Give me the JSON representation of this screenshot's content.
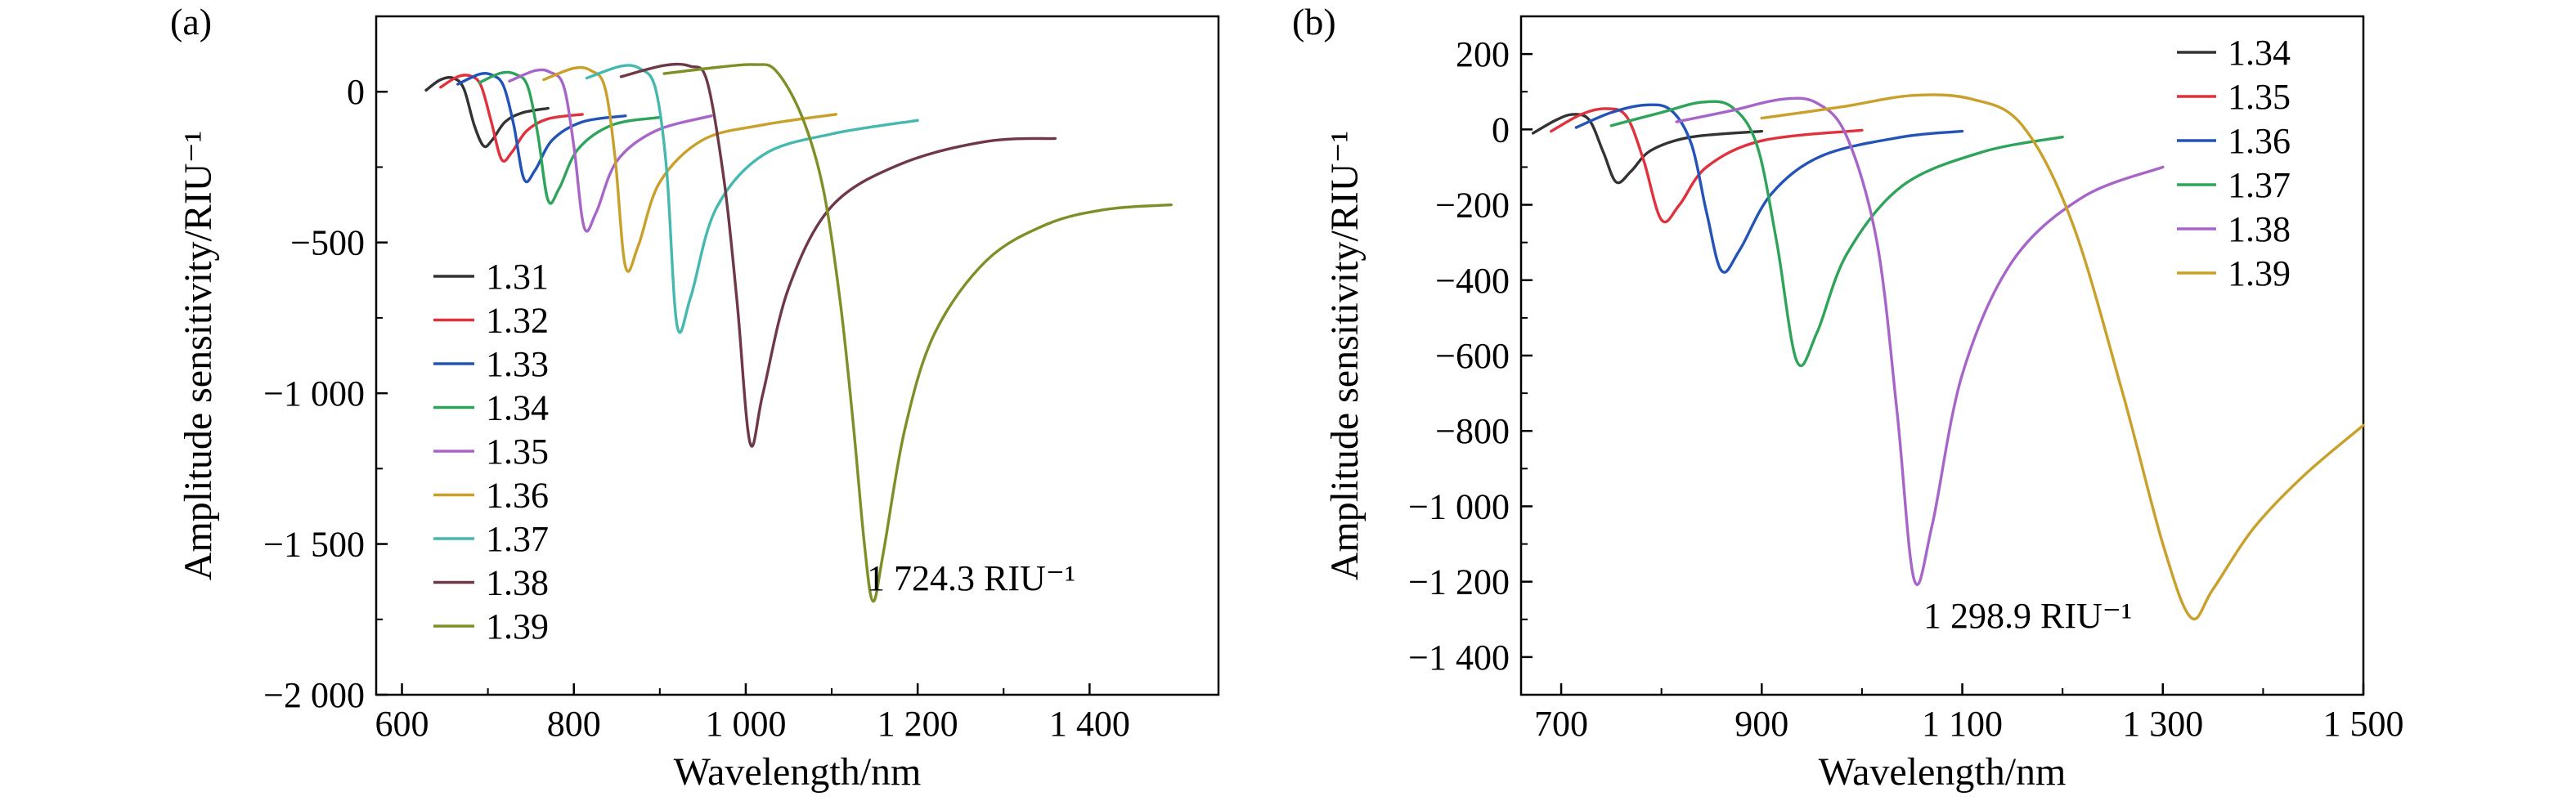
{
  "chart_data": [
    {
      "type": "line",
      "panel_label": "(a)",
      "xlabel": "Wavelength/nm",
      "ylabel": "Amplitude sensitivity/RIU⁻¹",
      "xlim": [
        570,
        1550
      ],
      "ylim": [
        -2000,
        250
      ],
      "xticks": [
        600,
        800,
        1000,
        1200,
        1400
      ],
      "xtick_labels": [
        "600",
        "800",
        "1 000",
        "1 200",
        "1 400"
      ],
      "yticks": [
        0,
        -500,
        -1000,
        -1500,
        -2000
      ],
      "ytick_labels": [
        "0",
        "−500",
        "−1 000",
        "−1 500",
        "−2 000"
      ],
      "legend_position": "left-middle",
      "annotation": "1 724.3 RIU⁻¹",
      "series": [
        {
          "name": "1.31",
          "color": "#333333",
          "points": [
            [
              628,
              5
            ],
            [
              645,
              40
            ],
            [
              660,
              45
            ],
            [
              672,
              10
            ],
            [
              684,
              -110
            ],
            [
              695,
              -180
            ],
            [
              705,
              -160
            ],
            [
              720,
              -100
            ],
            [
              740,
              -70
            ],
            [
              770,
              -55
            ]
          ]
        },
        {
          "name": "1.32",
          "color": "#e0323c",
          "points": [
            [
              645,
              15
            ],
            [
              665,
              50
            ],
            [
              680,
              52
            ],
            [
              692,
              20
            ],
            [
              704,
              -100
            ],
            [
              716,
              -225
            ],
            [
              728,
              -200
            ],
            [
              745,
              -130
            ],
            [
              770,
              -90
            ],
            [
              810,
              -75
            ]
          ]
        },
        {
          "name": "1.33",
          "color": "#2453b8",
          "points": [
            [
              665,
              25
            ],
            [
              690,
              58
            ],
            [
              705,
              55
            ],
            [
              718,
              20
            ],
            [
              730,
              -110
            ],
            [
              742,
              -290
            ],
            [
              755,
              -260
            ],
            [
              775,
              -160
            ],
            [
              810,
              -100
            ],
            [
              860,
              -80
            ]
          ]
        },
        {
          "name": "1.34",
          "color": "#2ea35a",
          "points": [
            [
              690,
              30
            ],
            [
              715,
              62
            ],
            [
              732,
              58
            ],
            [
              746,
              20
            ],
            [
              758,
              -140
            ],
            [
              770,
              -360
            ],
            [
              783,
              -320
            ],
            [
              805,
              -190
            ],
            [
              845,
              -110
            ],
            [
              900,
              -85
            ]
          ]
        },
        {
          "name": "1.35",
          "color": "#a865c9",
          "points": [
            [
              725,
              35
            ],
            [
              755,
              70
            ],
            [
              772,
              65
            ],
            [
              788,
              20
            ],
            [
              800,
              -180
            ],
            [
              812,
              -450
            ],
            [
              826,
              -400
            ],
            [
              850,
              -230
            ],
            [
              895,
              -130
            ],
            [
              960,
              -80
            ]
          ]
        },
        {
          "name": "1.36",
          "color": "#c9a02a",
          "points": [
            [
              765,
              40
            ],
            [
              800,
              78
            ],
            [
              820,
              70
            ],
            [
              836,
              15
            ],
            [
              848,
              -220
            ],
            [
              860,
              -580
            ],
            [
              875,
              -510
            ],
            [
              900,
              -300
            ],
            [
              950,
              -160
            ],
            [
              1020,
              -110
            ],
            [
              1105,
              -75
            ]
          ]
        },
        {
          "name": "1.37",
          "color": "#45b9b0",
          "points": [
            [
              815,
              45
            ],
            [
              855,
              85
            ],
            [
              878,
              75
            ],
            [
              895,
              10
            ],
            [
              908,
              -260
            ],
            [
              920,
              -775
            ],
            [
              936,
              -680
            ],
            [
              965,
              -390
            ],
            [
              1020,
              -210
            ],
            [
              1100,
              -140
            ],
            [
              1200,
              -95
            ]
          ]
        },
        {
          "name": "1.38",
          "color": "#6e3846",
          "points": [
            [
              855,
              50
            ],
            [
              905,
              87
            ],
            [
              935,
              85
            ],
            [
              955,
              35
            ],
            [
              975,
              -300
            ],
            [
              990,
              -700
            ],
            [
              1005,
              -1165
            ],
            [
              1020,
              -1000
            ],
            [
              1050,
              -650
            ],
            [
              1100,
              -380
            ],
            [
              1180,
              -240
            ],
            [
              1280,
              -165
            ],
            [
              1360,
              -155
            ]
          ]
        },
        {
          "name": "1.39",
          "color": "#7f8f27",
          "points": [
            [
              905,
              60
            ],
            [
              970,
              82
            ],
            [
              1010,
              90
            ],
            [
              1035,
              70
            ],
            [
              1065,
              -80
            ],
            [
              1090,
              -320
            ],
            [
              1110,
              -700
            ],
            [
              1125,
              -1100
            ],
            [
              1138,
              -1500
            ],
            [
              1148,
              -1690
            ],
            [
              1160,
              -1530
            ],
            [
              1185,
              -1120
            ],
            [
              1220,
              -800
            ],
            [
              1280,
              -560
            ],
            [
              1350,
              -440
            ],
            [
              1420,
              -390
            ],
            [
              1495,
              -375
            ]
          ]
        }
      ]
    },
    {
      "type": "line",
      "panel_label": "(b)",
      "xlabel": "Wavelength/nm",
      "ylabel": "Amplitude sensitivity/RIU⁻¹",
      "xlim": [
        660,
        1500
      ],
      "ylim": [
        -1500,
        300
      ],
      "xticks": [
        700,
        900,
        1100,
        1300,
        1500
      ],
      "xtick_labels": [
        "700",
        "900",
        "1 100",
        "1 300",
        "1 500"
      ],
      "yticks": [
        200,
        0,
        -200,
        -400,
        -600,
        -800,
        -1000,
        -1200,
        -1400
      ],
      "ytick_labels": [
        "200",
        "0",
        "−200",
        "−400",
        "−600",
        "−800",
        "−1 000",
        "−1 200",
        "−1 400"
      ],
      "legend_position": "top-right",
      "annotation": "1 298.9 RIU⁻¹",
      "series": [
        {
          "name": "1.34",
          "color": "#333333",
          "points": [
            [
              672,
              -10
            ],
            [
              695,
              25
            ],
            [
              712,
              40
            ],
            [
              728,
              25
            ],
            [
              742,
              -60
            ],
            [
              755,
              -140
            ],
            [
              770,
              -110
            ],
            [
              790,
              -55
            ],
            [
              830,
              -20
            ],
            [
              900,
              -5
            ]
          ]
        },
        {
          "name": "1.35",
          "color": "#e0323c",
          "points": [
            [
              690,
              -5
            ],
            [
              720,
              40
            ],
            [
              745,
              55
            ],
            [
              765,
              35
            ],
            [
              782,
              -80
            ],
            [
              800,
              -240
            ],
            [
              818,
              -200
            ],
            [
              845,
              -100
            ],
            [
              900,
              -30
            ],
            [
              1000,
              -2
            ]
          ]
        },
        {
          "name": "1.36",
          "color": "#2453b8",
          "points": [
            [
              715,
              5
            ],
            [
              750,
              45
            ],
            [
              785,
              65
            ],
            [
              810,
              50
            ],
            [
              830,
              -40
            ],
            [
              845,
              -220
            ],
            [
              860,
              -375
            ],
            [
              878,
              -320
            ],
            [
              910,
              -170
            ],
            [
              960,
              -70
            ],
            [
              1040,
              -20
            ],
            [
              1100,
              -5
            ]
          ]
        },
        {
          "name": "1.37",
          "color": "#2ea35a",
          "points": [
            [
              750,
              10
            ],
            [
              800,
              45
            ],
            [
              840,
              72
            ],
            [
              870,
              60
            ],
            [
              895,
              -40
            ],
            [
              915,
              -300
            ],
            [
              935,
              -615
            ],
            [
              955,
              -540
            ],
            [
              985,
              -330
            ],
            [
              1040,
              -150
            ],
            [
              1120,
              -60
            ],
            [
              1200,
              -20
            ]
          ]
        },
        {
          "name": "1.38",
          "color": "#a865c9",
          "points": [
            [
              815,
              20
            ],
            [
              870,
              50
            ],
            [
              920,
              80
            ],
            [
              955,
              70
            ],
            [
              985,
              -20
            ],
            [
              1015,
              -300
            ],
            [
              1035,
              -750
            ],
            [
              1052,
              -1195
            ],
            [
              1070,
              -1050
            ],
            [
              1100,
              -650
            ],
            [
              1150,
              -350
            ],
            [
              1220,
              -180
            ],
            [
              1300,
              -100
            ]
          ]
        },
        {
          "name": "1.39",
          "color": "#c9a02a",
          "points": [
            [
              900,
              30
            ],
            [
              980,
              60
            ],
            [
              1050,
              90
            ],
            [
              1110,
              80
            ],
            [
              1160,
              10
            ],
            [
              1210,
              -250
            ],
            [
              1260,
              -700
            ],
            [
              1300,
              -1100
            ],
            [
              1328,
              -1295
            ],
            [
              1350,
              -1220
            ],
            [
              1390,
              -1060
            ],
            [
              1440,
              -920
            ],
            [
              1500,
              -785
            ]
          ]
        }
      ]
    }
  ]
}
